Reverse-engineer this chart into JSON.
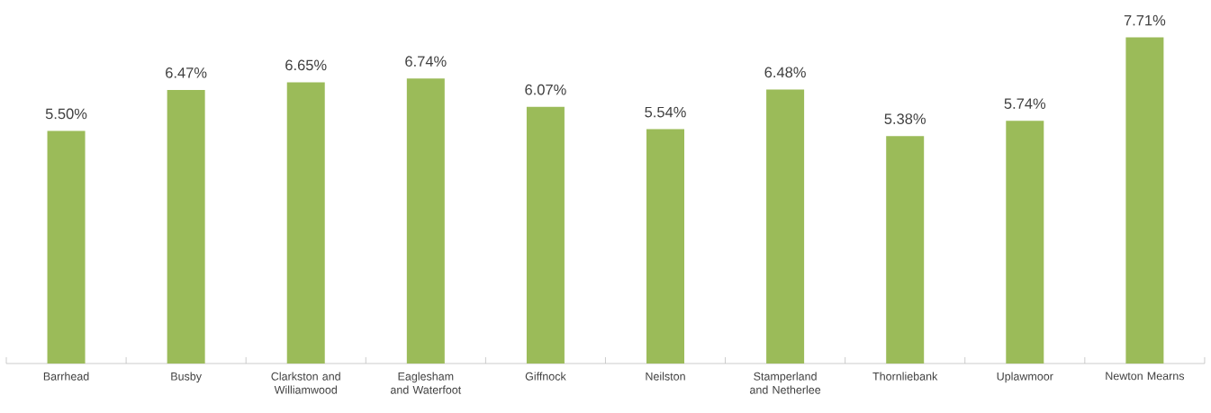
{
  "chart_data": {
    "type": "bar",
    "categories": [
      "Barrhead",
      "Busby",
      "Clarkston and Williamwood",
      "Eaglesham and Waterfoot",
      "Giffnock",
      "Neilston",
      "Stamperland and Netherlee",
      "Thornliebank",
      "Uplawmoor",
      "Newton Mearns"
    ],
    "values": [
      5.5,
      6.47,
      6.65,
      6.74,
      6.07,
      5.54,
      6.48,
      5.38,
      5.74,
      7.71
    ],
    "value_labels": [
      "5.50%",
      "6.47%",
      "6.65%",
      "6.74%",
      "6.07%",
      "5.54%",
      "6.48%",
      "5.38%",
      "5.74%",
      "7.71%"
    ],
    "color": "#9bbb59",
    "tick_labels": "x",
    "grid": false
  }
}
